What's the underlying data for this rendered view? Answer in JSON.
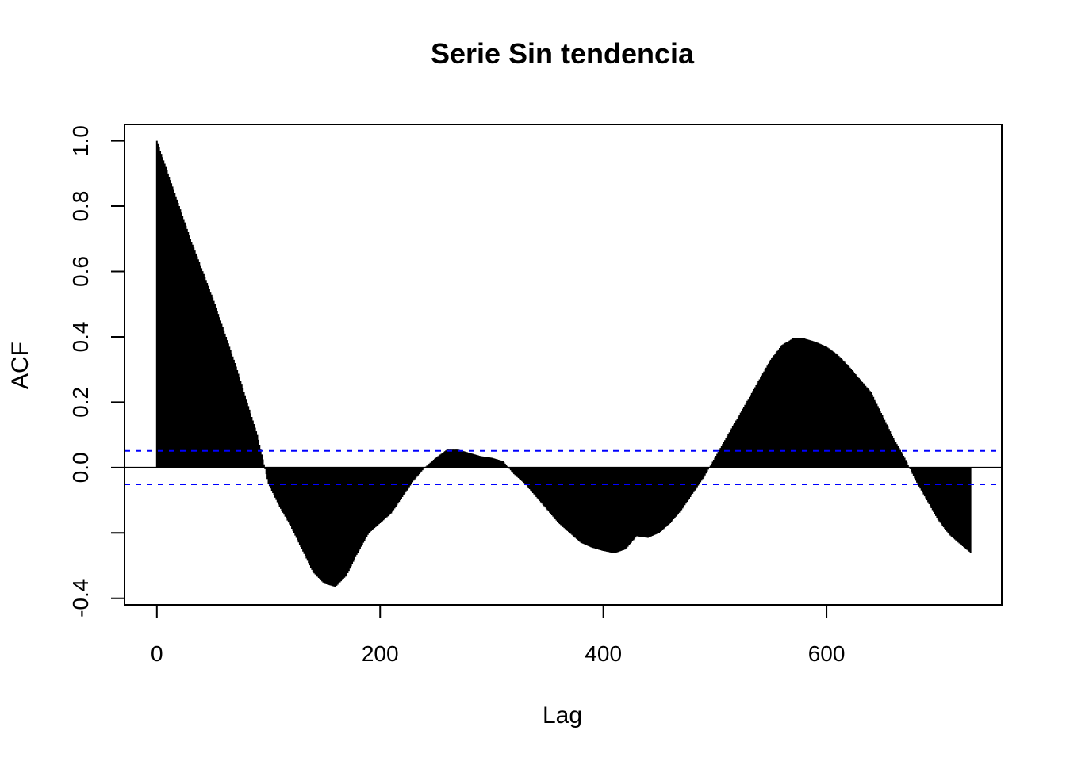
{
  "chart_data": {
    "type": "bar",
    "title": "Serie Sin tendencia",
    "xlabel": "Lag",
    "ylabel": "ACF",
    "xlim": [
      -29,
      757
    ],
    "ylim": [
      -0.42,
      1.05
    ],
    "xticks": [
      0,
      200,
      400,
      600
    ],
    "xtick_labels": [
      "0",
      "200",
      "400",
      "600"
    ],
    "yticks": [
      -0.4,
      -0.2,
      0.0,
      0.2,
      0.4,
      0.6,
      0.8,
      1.0
    ],
    "ytick_labels": [
      "-0.4",
      "",
      "0.0",
      "0.2",
      "0.4",
      "0.6",
      "0.8",
      "1.0"
    ],
    "max_lag": 729,
    "confidence_bound": 0.0513,
    "series": [
      {
        "name": "",
        "acf_points": [
          [
            0,
            1.0
          ],
          [
            10,
            0.9
          ],
          [
            20,
            0.8
          ],
          [
            30,
            0.7
          ],
          [
            40,
            0.61
          ],
          [
            50,
            0.52
          ],
          [
            60,
            0.42
          ],
          [
            70,
            0.32
          ],
          [
            80,
            0.21
          ],
          [
            90,
            0.1
          ],
          [
            100,
            -0.05
          ],
          [
            110,
            -0.12
          ],
          [
            120,
            -0.18
          ],
          [
            130,
            -0.25
          ],
          [
            140,
            -0.32
          ],
          [
            150,
            -0.355
          ],
          [
            160,
            -0.365
          ],
          [
            170,
            -0.33
          ],
          [
            180,
            -0.26
          ],
          [
            190,
            -0.2
          ],
          [
            200,
            -0.17
          ],
          [
            210,
            -0.14
          ],
          [
            220,
            -0.09
          ],
          [
            230,
            -0.04
          ],
          [
            240,
            0.0
          ],
          [
            250,
            0.03
          ],
          [
            260,
            0.055
          ],
          [
            270,
            0.055
          ],
          [
            280,
            0.045
          ],
          [
            290,
            0.035
          ],
          [
            300,
            0.03
          ],
          [
            310,
            0.02
          ],
          [
            320,
            -0.02
          ],
          [
            330,
            -0.05
          ],
          [
            340,
            -0.09
          ],
          [
            350,
            -0.13
          ],
          [
            360,
            -0.17
          ],
          [
            370,
            -0.2
          ],
          [
            380,
            -0.23
          ],
          [
            390,
            -0.245
          ],
          [
            400,
            -0.255
          ],
          [
            410,
            -0.262
          ],
          [
            420,
            -0.25
          ],
          [
            430,
            -0.21
          ],
          [
            440,
            -0.215
          ],
          [
            450,
            -0.2
          ],
          [
            460,
            -0.17
          ],
          [
            470,
            -0.13
          ],
          [
            480,
            -0.08
          ],
          [
            490,
            -0.03
          ],
          [
            500,
            0.03
          ],
          [
            510,
            0.09
          ],
          [
            520,
            0.15
          ],
          [
            530,
            0.21
          ],
          [
            540,
            0.27
          ],
          [
            550,
            0.33
          ],
          [
            560,
            0.375
          ],
          [
            570,
            0.395
          ],
          [
            580,
            0.395
          ],
          [
            590,
            0.385
          ],
          [
            600,
            0.37
          ],
          [
            610,
            0.345
          ],
          [
            620,
            0.31
          ],
          [
            630,
            0.27
          ],
          [
            640,
            0.23
          ],
          [
            650,
            0.16
          ],
          [
            660,
            0.09
          ],
          [
            670,
            0.03
          ],
          [
            680,
            -0.04
          ],
          [
            690,
            -0.1
          ],
          [
            700,
            -0.16
          ],
          [
            710,
            -0.205
          ],
          [
            720,
            -0.235
          ],
          [
            729,
            -0.26
          ]
        ]
      }
    ]
  }
}
